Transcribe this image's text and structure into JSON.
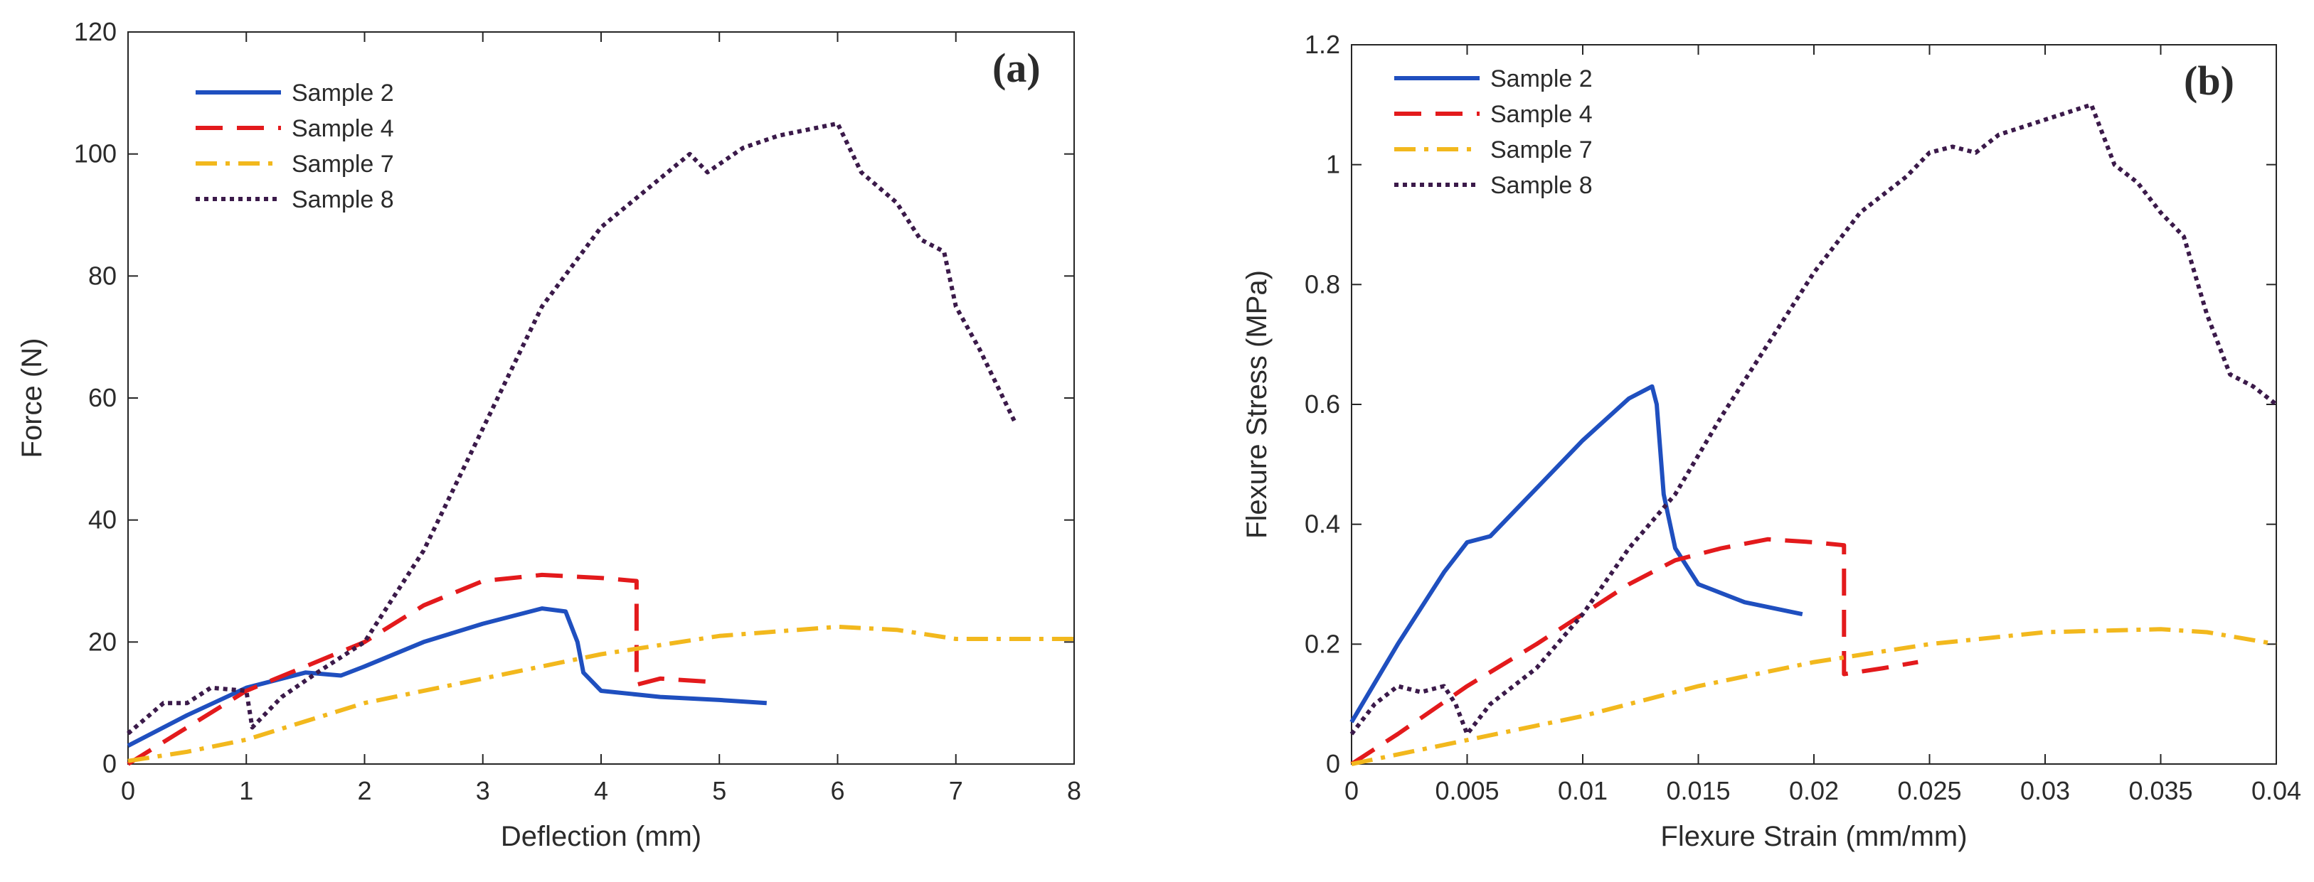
{
  "chart_data": [
    {
      "type": "line",
      "panel_label": "(a)",
      "xlabel": "Deflection (mm)",
      "ylabel": "Force (N)",
      "xlim": [
        0,
        8
      ],
      "ylim": [
        0,
        120
      ],
      "xticks": [
        "0",
        "1",
        "2",
        "3",
        "4",
        "5",
        "6",
        "7",
        "8"
      ],
      "yticks": [
        "0",
        "20",
        "40",
        "60",
        "80",
        "100",
        "120"
      ],
      "legend_position": "top-left",
      "series": [
        {
          "name": "Sample 2",
          "color": "#1f4fbf",
          "style": "solid",
          "points": [
            [
              0,
              3
            ],
            [
              0.5,
              8
            ],
            [
              1,
              12.5
            ],
            [
              1.5,
              15
            ],
            [
              1.8,
              14.5
            ],
            [
              2,
              16
            ],
            [
              2.5,
              20
            ],
            [
              3,
              23
            ],
            [
              3.5,
              25.5
            ],
            [
              3.7,
              25
            ],
            [
              3.8,
              20
            ],
            [
              3.85,
              15
            ],
            [
              4,
              12
            ],
            [
              4.5,
              11
            ],
            [
              5,
              10.5
            ],
            [
              5.4,
              10
            ]
          ]
        },
        {
          "name": "Sample 4",
          "color": "#e31a1c",
          "style": "dashed",
          "points": [
            [
              0,
              0
            ],
            [
              0.5,
              6
            ],
            [
              1,
              12
            ],
            [
              1.5,
              16
            ],
            [
              2,
              20
            ],
            [
              2.5,
              26
            ],
            [
              3,
              30
            ],
            [
              3.5,
              31
            ],
            [
              4,
              30.5
            ],
            [
              4.3,
              30
            ],
            [
              4.3,
              13
            ],
            [
              4.5,
              14
            ],
            [
              4.9,
              13.5
            ]
          ]
        },
        {
          "name": "Sample 7",
          "color": "#f2b81d",
          "style": "dashdot",
          "points": [
            [
              0,
              0.5
            ],
            [
              0.5,
              2
            ],
            [
              1,
              4
            ],
            [
              1.5,
              7
            ],
            [
              2,
              10
            ],
            [
              3,
              14
            ],
            [
              4,
              18
            ],
            [
              5,
              21
            ],
            [
              6,
              22.5
            ],
            [
              6.5,
              22
            ],
            [
              7,
              20.5
            ],
            [
              8,
              20.5
            ]
          ]
        },
        {
          "name": "Sample 8",
          "color": "#3b1a4a",
          "style": "dotted",
          "points": [
            [
              0,
              5
            ],
            [
              0.3,
              10
            ],
            [
              0.5,
              10
            ],
            [
              0.7,
              12.5
            ],
            [
              1,
              12
            ],
            [
              1.05,
              6
            ],
            [
              1.3,
              11
            ],
            [
              1.6,
              15
            ],
            [
              2,
              20
            ],
            [
              2.5,
              35
            ],
            [
              3,
              55
            ],
            [
              3.5,
              75
            ],
            [
              4,
              88
            ],
            [
              4.5,
              96
            ],
            [
              4.75,
              100
            ],
            [
              4.9,
              97
            ],
            [
              5.2,
              101
            ],
            [
              5.5,
              103
            ],
            [
              6,
              105
            ],
            [
              6.2,
              97
            ],
            [
              6.5,
              92
            ],
            [
              6.7,
              86
            ],
            [
              6.9,
              84
            ],
            [
              7,
              75
            ],
            [
              7.2,
              68
            ],
            [
              7.5,
              56
            ]
          ]
        }
      ]
    },
    {
      "type": "line",
      "panel_label": "(b)",
      "xlabel": "Flexure Strain (mm/mm)",
      "ylabel": "Flexure Stress (MPa)",
      "xlim": [
        0,
        0.04
      ],
      "ylim": [
        0,
        1.2
      ],
      "xticks": [
        "0",
        "0.005",
        "0.01",
        "0.015",
        "0.02",
        "0.025",
        "0.03",
        "0.035",
        "0.04"
      ],
      "yticks": [
        "0",
        "0.2",
        "0.4",
        "0.6",
        "0.8",
        "1",
        "1.2"
      ],
      "legend_position": "top-left",
      "series": [
        {
          "name": "Sample 2",
          "color": "#1f4fbf",
          "style": "solid",
          "points": [
            [
              0,
              0.07
            ],
            [
              0.002,
              0.2
            ],
            [
              0.004,
              0.32
            ],
            [
              0.005,
              0.37
            ],
            [
              0.006,
              0.38
            ],
            [
              0.008,
              0.46
            ],
            [
              0.01,
              0.54
            ],
            [
              0.012,
              0.61
            ],
            [
              0.013,
              0.63
            ],
            [
              0.0132,
              0.6
            ],
            [
              0.0135,
              0.45
            ],
            [
              0.014,
              0.36
            ],
            [
              0.015,
              0.3
            ],
            [
              0.017,
              0.27
            ],
            [
              0.0195,
              0.25
            ]
          ]
        },
        {
          "name": "Sample 4",
          "color": "#e31a1c",
          "style": "dashed",
          "points": [
            [
              0,
              0
            ],
            [
              0.002,
              0.05
            ],
            [
              0.005,
              0.13
            ],
            [
              0.008,
              0.2
            ],
            [
              0.01,
              0.25
            ],
            [
              0.012,
              0.3
            ],
            [
              0.014,
              0.34
            ],
            [
              0.016,
              0.36
            ],
            [
              0.018,
              0.375
            ],
            [
              0.02,
              0.37
            ],
            [
              0.0213,
              0.365
            ],
            [
              0.0213,
              0.15
            ],
            [
              0.023,
              0.16
            ],
            [
              0.0245,
              0.17
            ]
          ]
        },
        {
          "name": "Sample 7",
          "color": "#f2b81d",
          "style": "dashdot",
          "points": [
            [
              0,
              0
            ],
            [
              0.005,
              0.04
            ],
            [
              0.01,
              0.08
            ],
            [
              0.015,
              0.13
            ],
            [
              0.02,
              0.17
            ],
            [
              0.025,
              0.2
            ],
            [
              0.03,
              0.22
            ],
            [
              0.035,
              0.225
            ],
            [
              0.037,
              0.22
            ],
            [
              0.04,
              0.2
            ]
          ]
        },
        {
          "name": "Sample 8",
          "color": "#3b1a4a",
          "style": "dotted",
          "points": [
            [
              0,
              0.05
            ],
            [
              0.001,
              0.1
            ],
            [
              0.002,
              0.13
            ],
            [
              0.003,
              0.12
            ],
            [
              0.004,
              0.13
            ],
            [
              0.0045,
              0.1
            ],
            [
              0.005,
              0.05
            ],
            [
              0.006,
              0.1
            ],
            [
              0.008,
              0.16
            ],
            [
              0.01,
              0.25
            ],
            [
              0.012,
              0.36
            ],
            [
              0.014,
              0.45
            ],
            [
              0.016,
              0.58
            ],
            [
              0.018,
              0.7
            ],
            [
              0.02,
              0.82
            ],
            [
              0.022,
              0.92
            ],
            [
              0.024,
              0.98
            ],
            [
              0.025,
              1.02
            ],
            [
              0.026,
              1.03
            ],
            [
              0.027,
              1.02
            ],
            [
              0.028,
              1.05
            ],
            [
              0.03,
              1.075
            ],
            [
              0.032,
              1.1
            ],
            [
              0.033,
              1.0
            ],
            [
              0.034,
              0.97
            ],
            [
              0.035,
              0.92
            ],
            [
              0.036,
              0.88
            ],
            [
              0.037,
              0.75
            ],
            [
              0.038,
              0.65
            ],
            [
              0.039,
              0.63
            ],
            [
              0.04,
              0.6
            ]
          ]
        }
      ]
    }
  ]
}
